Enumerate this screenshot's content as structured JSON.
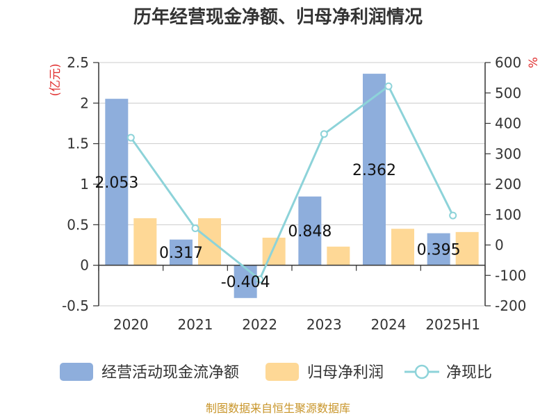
{
  "chart_data": {
    "type": "bar",
    "title": "历年经营现金净额、归母净利润情况",
    "categories": [
      "2020",
      "2021",
      "2022",
      "2023",
      "2024",
      "2025H1"
    ],
    "series": [
      {
        "name": "经营活动现金流净额",
        "type": "bar",
        "axis": "left",
        "color": "#8eaedc",
        "values": [
          2.053,
          0.317,
          -0.404,
          0.848,
          2.362,
          0.395
        ]
      },
      {
        "name": "归母净利润",
        "type": "bar",
        "axis": "left",
        "color": "#fed896",
        "values": [
          0.58,
          0.58,
          0.34,
          0.23,
          0.45,
          0.41
        ]
      },
      {
        "name": "净现比",
        "type": "line",
        "axis": "right",
        "color": "#8dd3d9",
        "values": [
          353,
          55,
          -113,
          365,
          522,
          97
        ]
      }
    ],
    "data_labels": [
      "2.053",
      "0.317",
      "-0.404",
      "0.848",
      "2.362",
      "0.395"
    ],
    "y_left": {
      "label": "(亿元)",
      "lim": [
        -0.5,
        2.5
      ],
      "ticks": [
        "-0.5",
        "0",
        "0.5",
        "1",
        "1.5",
        "2",
        "2.5"
      ]
    },
    "y_right": {
      "label": "%",
      "lim": [
        -200,
        600
      ],
      "ticks": [
        "-200",
        "-100",
        "0",
        "100",
        "200",
        "300",
        "400",
        "500",
        "600"
      ]
    },
    "grid": true,
    "legend_position": "bottom",
    "source": "制图数据来自恒生聚源数据库"
  }
}
